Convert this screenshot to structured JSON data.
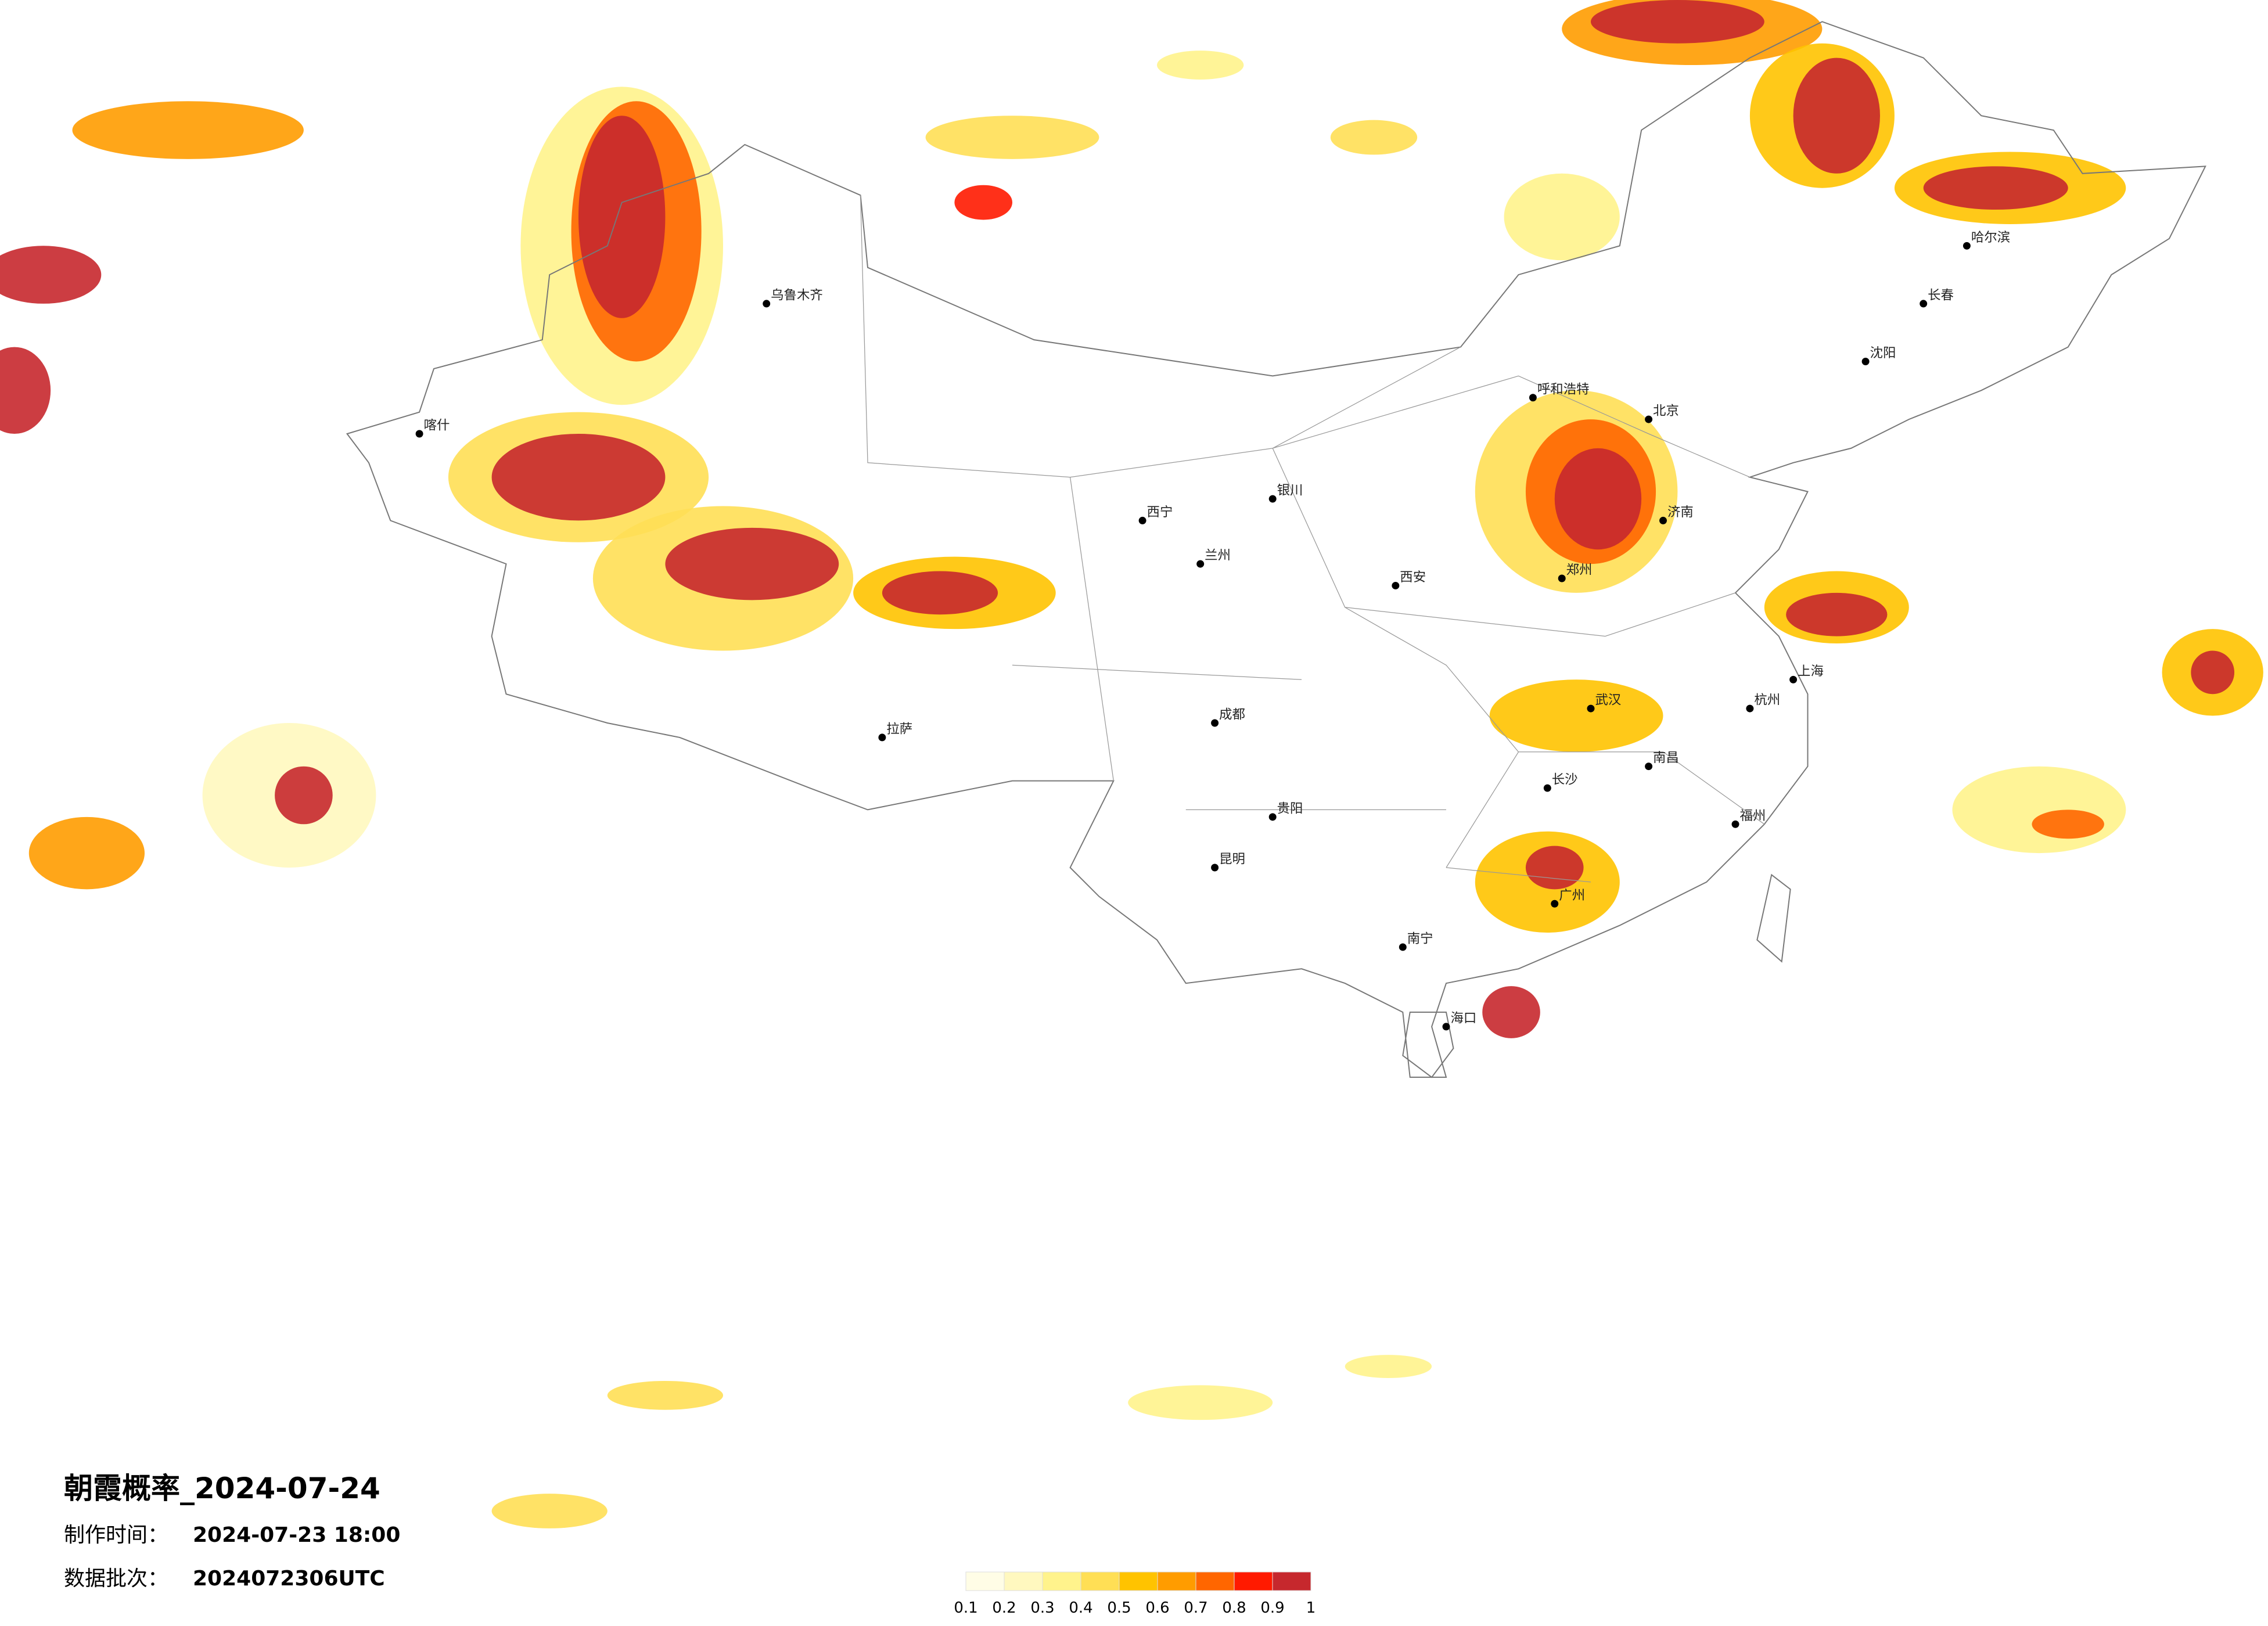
{
  "header": {
    "title": "朝霞概率_2024-07-24",
    "made_label": "制作时间：",
    "made_value": "2024-07-23 18:00",
    "batch_label": "数据批次：",
    "batch_value": "2024072306UTC"
  },
  "legend": {
    "ticks": [
      0.1,
      0.2,
      0.3,
      0.4,
      0.5,
      0.6,
      0.7,
      0.8,
      0.9,
      1
    ],
    "colors": [
      "#fffde6",
      "#fff8bf",
      "#fff38c",
      "#ffdf55",
      "#ffc300",
      "#ff9c00",
      "#ff6600",
      "#ff1a00",
      "#c6282d"
    ]
  },
  "cities": [
    "北京",
    "哈尔滨",
    "长春",
    "沈阳",
    "呼和浩特",
    "济南",
    "郑州",
    "武汉",
    "长沙",
    "南昌",
    "广州",
    "南宁",
    "昆明",
    "贵阳",
    "成都",
    "兰州",
    "西宁",
    "拉萨",
    "乌鲁木齐",
    "喀什",
    "上海",
    "杭州",
    "福州",
    "西安",
    "银川",
    "海口"
  ]
}
